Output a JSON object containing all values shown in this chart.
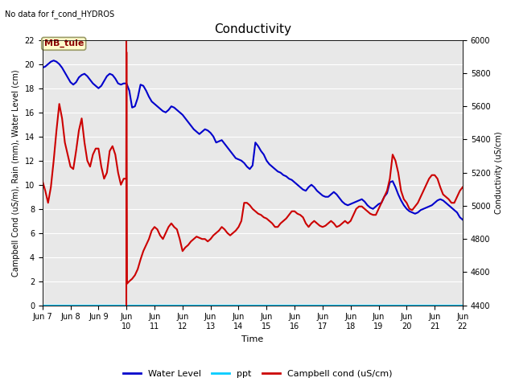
{
  "title": "Conductivity",
  "no_data_text": "No data for f_cond_HYDROS",
  "xlabel": "Time",
  "ylabel_left": "Campbell Cond (uS/m), Rain (mm), Water Level (cm)",
  "ylabel_right": "Conductivity (uS/cm)",
  "ylim_left": [
    0,
    22
  ],
  "ylim_right": [
    4400,
    6000
  ],
  "yticks_left": [
    0,
    2,
    4,
    6,
    8,
    10,
    12,
    14,
    16,
    18,
    20,
    22
  ],
  "yticks_right": [
    4400,
    4600,
    4800,
    5000,
    5200,
    5400,
    5600,
    5800,
    6000
  ],
  "fig_facecolor": "#ffffff",
  "ax_facecolor": "#e8e8e8",
  "station_label": "MB_tule",
  "legend_entries": [
    "Water Level",
    "ppt",
    "Campbell cond (uS/cm)"
  ],
  "water_level_color": "#0000cc",
  "ppt_color": "#00ccff",
  "campbell_color": "#cc0000",
  "water_level_x": [
    7.0,
    7.1,
    7.2,
    7.3,
    7.4,
    7.5,
    7.6,
    7.7,
    7.8,
    7.9,
    8.0,
    8.1,
    8.2,
    8.3,
    8.4,
    8.5,
    8.6,
    8.7,
    8.8,
    8.9,
    9.0,
    9.1,
    9.2,
    9.3,
    9.4,
    9.5,
    9.6,
    9.7,
    9.8,
    9.9,
    10.0,
    10.1,
    10.2,
    10.3,
    10.4,
    10.5,
    10.6,
    10.7,
    10.8,
    10.9,
    11.0,
    11.1,
    11.2,
    11.3,
    11.4,
    11.5,
    11.6,
    11.7,
    11.8,
    11.9,
    12.0,
    12.1,
    12.2,
    12.3,
    12.4,
    12.5,
    12.6,
    12.7,
    12.8,
    12.9,
    13.0,
    13.1,
    13.2,
    13.3,
    13.4,
    13.5,
    13.6,
    13.7,
    13.8,
    13.9,
    14.0,
    14.1,
    14.2,
    14.3,
    14.4,
    14.5,
    14.6,
    14.7,
    14.8,
    14.9,
    15.0,
    15.1,
    15.2,
    15.3,
    15.4,
    15.5,
    15.6,
    15.7,
    15.8,
    15.9,
    16.0,
    16.1,
    16.2,
    16.3,
    16.4,
    16.5,
    16.6,
    16.7,
    16.8,
    16.9,
    17.0,
    17.1,
    17.2,
    17.3,
    17.4,
    17.5,
    17.6,
    17.7,
    17.8,
    17.9,
    18.0,
    18.1,
    18.2,
    18.3,
    18.4,
    18.5,
    18.6,
    18.7,
    18.8,
    18.9,
    19.0,
    19.1,
    19.2,
    19.3,
    19.4,
    19.5,
    19.6,
    19.7,
    19.8,
    19.9,
    20.0,
    20.1,
    20.2,
    20.3,
    20.4,
    20.5,
    20.6,
    20.7,
    20.8,
    20.9,
    21.0,
    21.1,
    21.2,
    21.3,
    21.4,
    21.5,
    21.6,
    21.7,
    21.8,
    21.9,
    22.0
  ],
  "water_level_y": [
    19.7,
    19.8,
    20.0,
    20.2,
    20.3,
    20.2,
    20.0,
    19.7,
    19.3,
    18.9,
    18.5,
    18.3,
    18.5,
    18.9,
    19.1,
    19.2,
    19.0,
    18.7,
    18.4,
    18.2,
    18.0,
    18.2,
    18.6,
    19.0,
    19.2,
    19.1,
    18.8,
    18.4,
    18.3,
    18.4,
    18.4,
    17.8,
    16.4,
    16.5,
    17.2,
    18.3,
    18.2,
    17.8,
    17.3,
    16.9,
    16.7,
    16.5,
    16.3,
    16.1,
    16.0,
    16.2,
    16.5,
    16.4,
    16.2,
    16.0,
    15.8,
    15.5,
    15.2,
    14.9,
    14.6,
    14.4,
    14.2,
    14.4,
    14.6,
    14.5,
    14.3,
    14.0,
    13.5,
    13.6,
    13.7,
    13.4,
    13.1,
    12.8,
    12.5,
    12.2,
    12.1,
    12.0,
    11.8,
    11.5,
    11.3,
    11.6,
    13.5,
    13.2,
    12.8,
    12.5,
    12.0,
    11.7,
    11.5,
    11.3,
    11.1,
    11.0,
    10.8,
    10.7,
    10.5,
    10.4,
    10.2,
    10.0,
    9.8,
    9.6,
    9.5,
    9.8,
    10.0,
    9.8,
    9.5,
    9.3,
    9.1,
    9.0,
    9.0,
    9.2,
    9.4,
    9.2,
    8.9,
    8.6,
    8.4,
    8.3,
    8.4,
    8.5,
    8.6,
    8.7,
    8.8,
    8.6,
    8.3,
    8.1,
    8.0,
    8.2,
    8.4,
    8.5,
    9.0,
    9.3,
    10.2,
    10.3,
    9.8,
    9.2,
    8.7,
    8.3,
    8.0,
    7.8,
    7.7,
    7.6,
    7.7,
    7.9,
    8.0,
    8.1,
    8.2,
    8.3,
    8.5,
    8.7,
    8.8,
    8.7,
    8.5,
    8.3,
    8.1,
    7.9,
    7.7,
    7.3,
    7.1
  ],
  "campbell_x": [
    7.0,
    7.1,
    7.2,
    7.3,
    7.4,
    7.5,
    7.6,
    7.7,
    7.8,
    7.9,
    8.0,
    8.1,
    8.2,
    8.3,
    8.4,
    8.5,
    8.6,
    8.7,
    8.8,
    8.9,
    9.0,
    9.1,
    9.2,
    9.3,
    9.4,
    9.5,
    9.6,
    9.7,
    9.8,
    9.9,
    9.99,
    10.0,
    10.02,
    10.1,
    10.2,
    10.3,
    10.4,
    10.5,
    10.6,
    10.7,
    10.8,
    10.9,
    11.0,
    11.1,
    11.2,
    11.3,
    11.4,
    11.5,
    11.6,
    11.7,
    11.8,
    11.9,
    12.0,
    12.1,
    12.2,
    12.3,
    12.4,
    12.5,
    12.6,
    12.7,
    12.8,
    12.9,
    13.0,
    13.1,
    13.2,
    13.3,
    13.4,
    13.5,
    13.6,
    13.7,
    13.8,
    13.9,
    14.0,
    14.1,
    14.2,
    14.3,
    14.4,
    14.5,
    14.6,
    14.7,
    14.8,
    14.9,
    15.0,
    15.1,
    15.2,
    15.3,
    15.4,
    15.5,
    15.6,
    15.7,
    15.8,
    15.9,
    16.0,
    16.1,
    16.2,
    16.3,
    16.4,
    16.5,
    16.6,
    16.7,
    16.8,
    16.9,
    17.0,
    17.1,
    17.2,
    17.3,
    17.4,
    17.5,
    17.6,
    17.7,
    17.8,
    17.9,
    18.0,
    18.1,
    18.2,
    18.3,
    18.4,
    18.5,
    18.6,
    18.7,
    18.8,
    18.9,
    19.0,
    19.1,
    19.2,
    19.3,
    19.4,
    19.5,
    19.6,
    19.7,
    19.8,
    19.9,
    20.0,
    20.1,
    20.2,
    20.3,
    20.4,
    20.5,
    20.6,
    20.7,
    20.8,
    20.9,
    21.0,
    21.1,
    21.2,
    21.3,
    21.4,
    21.5,
    21.6,
    21.7,
    21.8,
    21.9,
    22.0
  ],
  "campbell_y": [
    10.3,
    9.5,
    8.5,
    9.8,
    12.0,
    14.5,
    16.7,
    15.5,
    13.5,
    12.5,
    11.5,
    11.3,
    12.8,
    14.5,
    15.5,
    13.5,
    12.0,
    11.5,
    12.5,
    13.0,
    13.0,
    11.5,
    10.5,
    11.0,
    12.8,
    13.2,
    12.5,
    11.0,
    10.0,
    10.5,
    10.5,
    21.0,
    1.8,
    2.0,
    2.2,
    2.5,
    3.0,
    3.8,
    4.5,
    5.0,
    5.5,
    6.2,
    6.5,
    6.3,
    5.8,
    5.5,
    6.0,
    6.5,
    6.8,
    6.5,
    6.3,
    5.5,
    4.5,
    4.8,
    5.0,
    5.3,
    5.5,
    5.7,
    5.6,
    5.5,
    5.5,
    5.3,
    5.5,
    5.8,
    6.0,
    6.2,
    6.5,
    6.3,
    6.0,
    5.8,
    6.0,
    6.2,
    6.5,
    7.0,
    8.5,
    8.5,
    8.3,
    8.0,
    7.8,
    7.6,
    7.5,
    7.3,
    7.2,
    7.0,
    6.8,
    6.5,
    6.5,
    6.8,
    7.0,
    7.2,
    7.5,
    7.8,
    7.8,
    7.6,
    7.5,
    7.3,
    6.8,
    6.5,
    6.8,
    7.0,
    6.8,
    6.6,
    6.5,
    6.6,
    6.8,
    7.0,
    6.8,
    6.5,
    6.6,
    6.8,
    7.0,
    6.8,
    7.0,
    7.5,
    8.0,
    8.2,
    8.2,
    8.0,
    7.8,
    7.6,
    7.5,
    7.5,
    8.0,
    8.5,
    9.0,
    9.5,
    10.5,
    12.5,
    12.0,
    11.0,
    9.5,
    8.8,
    8.5,
    8.0,
    7.9,
    8.2,
    8.5,
    9.0,
    9.5,
    10.0,
    10.5,
    10.8,
    10.8,
    10.5,
    9.8,
    9.2,
    9.0,
    8.8,
    8.5,
    8.5,
    9.0,
    9.5,
    9.8
  ],
  "ppt_y": 0.0,
  "x_tick_labels": [
    "Jun 7",
    "Jun 8",
    "Jun 9",
    "Jun\n10",
    "Jun\n11",
    "Jun\n12",
    "Jun\n13",
    "Jun\n14",
    "Jun\n15",
    "Jun\n16",
    "Jun\n17",
    "Jun\n18",
    "Jun\n19",
    "Jun\n20",
    "Jun\n21",
    "Jun\n22"
  ],
  "x_tick_positions": [
    7,
    8,
    9,
    10,
    11,
    12,
    13,
    14,
    15,
    16,
    17,
    18,
    19,
    20,
    21,
    22
  ],
  "xlim": [
    7,
    22
  ],
  "vertical_line_x": 10.0,
  "vertical_line_color": "#cc0000",
  "grid_color": "#ffffff",
  "title_fontsize": 11,
  "label_fontsize": 7,
  "tick_fontsize": 7,
  "legend_fontsize": 8
}
